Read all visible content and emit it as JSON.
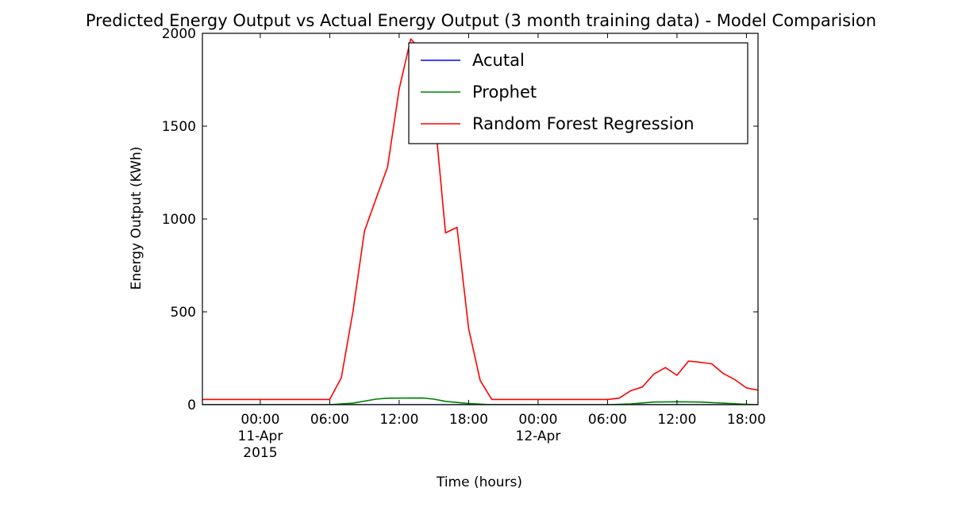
{
  "chart_data": {
    "type": "line",
    "title": "Predicted Energy Output vs Actual Energy Output (3 month training data) - Model Comparision",
    "xlabel": "Time (hours)",
    "ylabel": "Energy Output (KWh)",
    "xlim": [
      "2015-04-10 19:00",
      "2015-04-12 19:00"
    ],
    "ylim": [
      0,
      2000
    ],
    "yticks": [
      0,
      500,
      1000,
      1500,
      2000
    ],
    "xticks": [
      {
        "at": "2015-04-11 00:00",
        "lines": [
          "00:00",
          "11-Apr",
          "2015"
        ]
      },
      {
        "at": "2015-04-11 06:00",
        "lines": [
          "06:00"
        ]
      },
      {
        "at": "2015-04-11 12:00",
        "lines": [
          "12:00"
        ]
      },
      {
        "at": "2015-04-11 18:00",
        "lines": [
          "18:00"
        ]
      },
      {
        "at": "2015-04-12 00:00",
        "lines": [
          "00:00",
          "12-Apr"
        ]
      },
      {
        "at": "2015-04-12 06:00",
        "lines": [
          "06:00"
        ]
      },
      {
        "at": "2015-04-12 12:00",
        "lines": [
          "12:00"
        ]
      },
      {
        "at": "2015-04-12 18:00",
        "lines": [
          "18:00"
        ]
      }
    ],
    "legend_position": "top-right",
    "grid": false,
    "series": [
      {
        "name": "Acutal",
        "color": "#0000ff",
        "points": [
          [
            "2015-04-10 19:00",
            0
          ],
          [
            "2015-04-12 19:00",
            0
          ]
        ]
      },
      {
        "name": "Prophet",
        "color": "#008000",
        "points": [
          [
            "2015-04-10 19:00",
            0
          ],
          [
            "2015-04-11 06:00",
            0
          ],
          [
            "2015-04-11 08:00",
            8
          ],
          [
            "2015-04-11 10:00",
            30
          ],
          [
            "2015-04-11 11:00",
            35
          ],
          [
            "2015-04-11 14:00",
            36
          ],
          [
            "2015-04-11 15:00",
            30
          ],
          [
            "2015-04-11 16:00",
            18
          ],
          [
            "2015-04-11 18:00",
            6
          ],
          [
            "2015-04-11 20:00",
            0
          ],
          [
            "2015-04-12 06:00",
            0
          ],
          [
            "2015-04-12 08:00",
            4
          ],
          [
            "2015-04-12 10:00",
            14
          ],
          [
            "2015-04-12 12:00",
            16
          ],
          [
            "2015-04-12 14:00",
            14
          ],
          [
            "2015-04-12 16:00",
            8
          ],
          [
            "2015-04-12 18:00",
            2
          ],
          [
            "2015-04-12 19:00",
            0
          ]
        ]
      },
      {
        "name": "Random Forest Regression",
        "color": "#ff0000",
        "points": [
          [
            "2015-04-10 19:00",
            28
          ],
          [
            "2015-04-11 06:00",
            28
          ],
          [
            "2015-04-11 07:00",
            145
          ],
          [
            "2015-04-11 08:00",
            500
          ],
          [
            "2015-04-11 09:00",
            935
          ],
          [
            "2015-04-11 10:00",
            1110
          ],
          [
            "2015-04-11 11:00",
            1280
          ],
          [
            "2015-04-11 12:00",
            1700
          ],
          [
            "2015-04-11 13:00",
            1970
          ],
          [
            "2015-04-11 14:00",
            1900
          ],
          [
            "2015-04-11 15:00",
            1600
          ],
          [
            "2015-04-11 16:00",
            925
          ],
          [
            "2015-04-11 17:00",
            955
          ],
          [
            "2015-04-11 18:00",
            410
          ],
          [
            "2015-04-11 19:00",
            130
          ],
          [
            "2015-04-11 20:00",
            28
          ],
          [
            "2015-04-12 06:00",
            28
          ],
          [
            "2015-04-12 07:00",
            35
          ],
          [
            "2015-04-12 08:00",
            75
          ],
          [
            "2015-04-12 09:00",
            95
          ],
          [
            "2015-04-12 10:00",
            165
          ],
          [
            "2015-04-12 11:00",
            200
          ],
          [
            "2015-04-12 12:00",
            158
          ],
          [
            "2015-04-12 13:00",
            235
          ],
          [
            "2015-04-12 14:00",
            228
          ],
          [
            "2015-04-12 15:00",
            220
          ],
          [
            "2015-04-12 16:00",
            168
          ],
          [
            "2015-04-12 17:00",
            135
          ],
          [
            "2015-04-12 18:00",
            90
          ],
          [
            "2015-04-12 19:00",
            78
          ],
          [
            "2015-04-12 20:00",
            45
          ]
        ]
      }
    ]
  }
}
